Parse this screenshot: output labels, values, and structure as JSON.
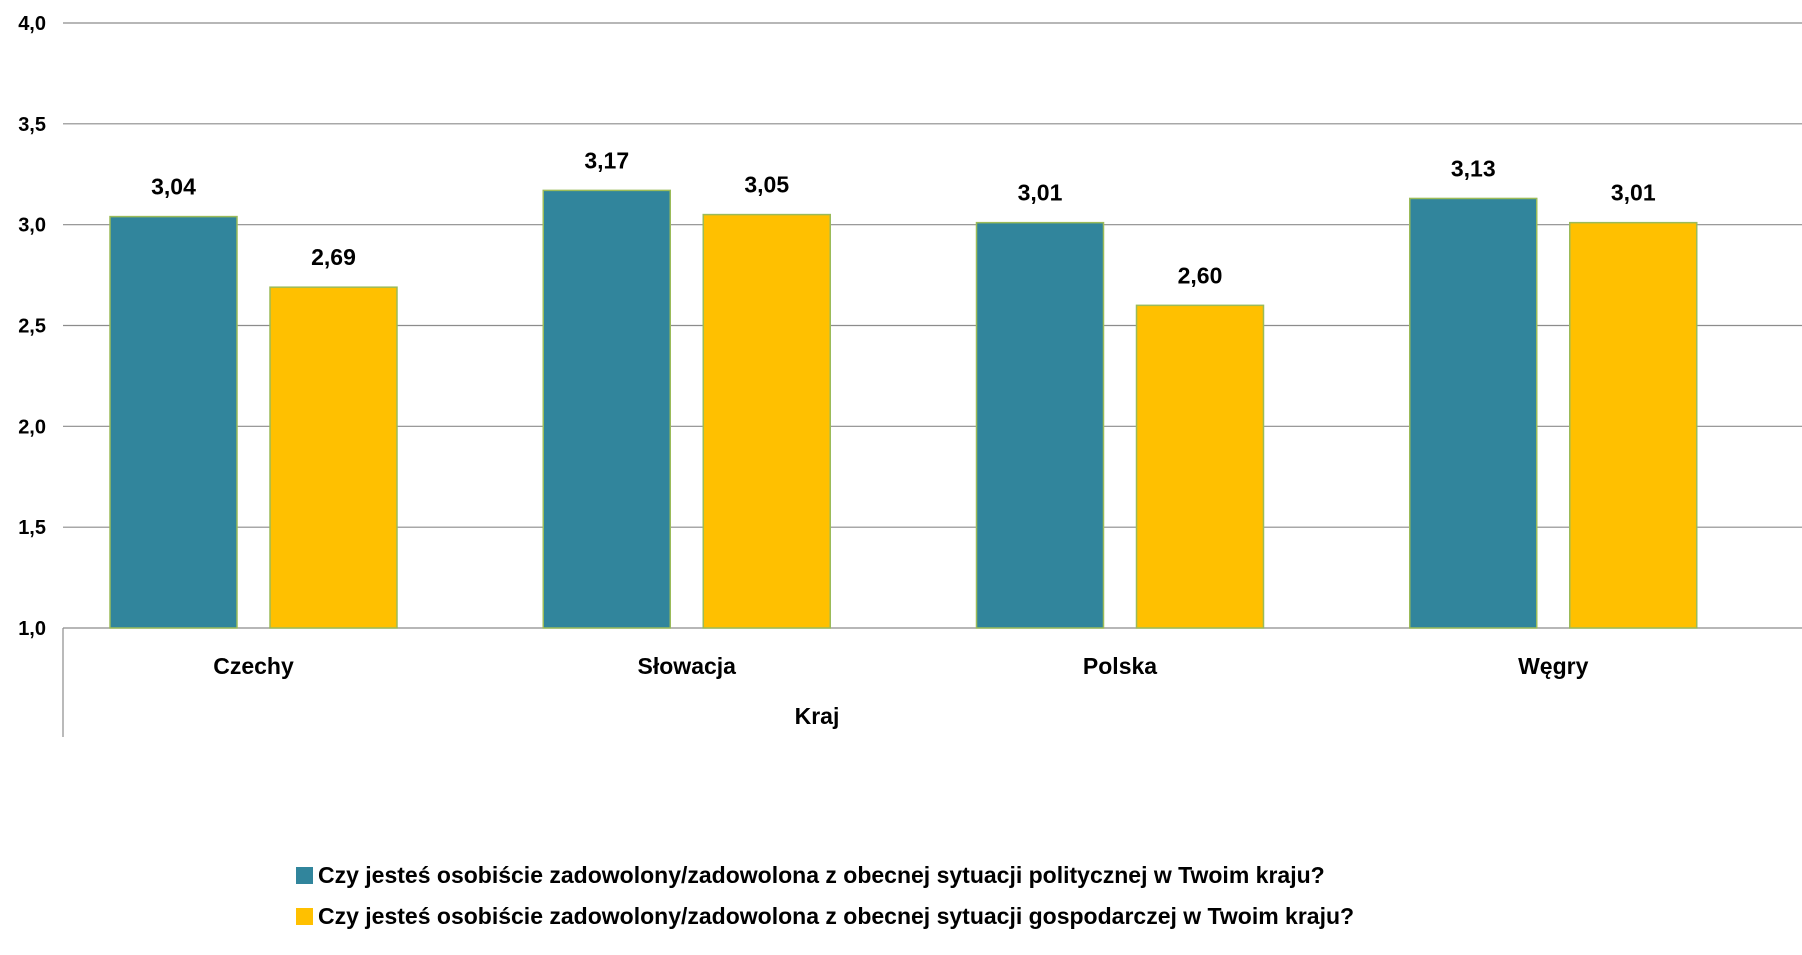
{
  "chart_data": {
    "type": "bar",
    "categories": [
      "Czechy",
      "Słowacja",
      "Polska",
      "Węgry"
    ],
    "series": [
      {
        "name": "Czy jesteś osobiście zadowolony/zadowolona z obecnej sytuacji politycznej w Twoim kraju?",
        "values": [
          3.04,
          3.17,
          3.01,
          3.13
        ],
        "labels": [
          "3,04",
          "3,17",
          "3,01",
          "3,13"
        ],
        "color": "#31859C"
      },
      {
        "name": "Czy jesteś osobiście zadowolony/zadowolona z obecnej sytuacji gospodarczej w Twoim kraju?",
        "values": [
          2.69,
          3.05,
          2.6,
          3.01
        ],
        "labels": [
          "2,69",
          "3,05",
          "2,60",
          "3,01"
        ],
        "color": "#FFC000"
      }
    ],
    "xlabel": "Kraj",
    "ylabel": "",
    "ylim": [
      1.0,
      4.0
    ],
    "yticks": [
      1.0,
      1.5,
      2.0,
      2.5,
      3.0,
      3.5,
      4.0
    ],
    "ytick_labels": [
      "1,0",
      "1,5",
      "2,0",
      "2,5",
      "3,0",
      "3,5",
      "4,0"
    ],
    "grid": true,
    "legend_position": "bottom"
  }
}
